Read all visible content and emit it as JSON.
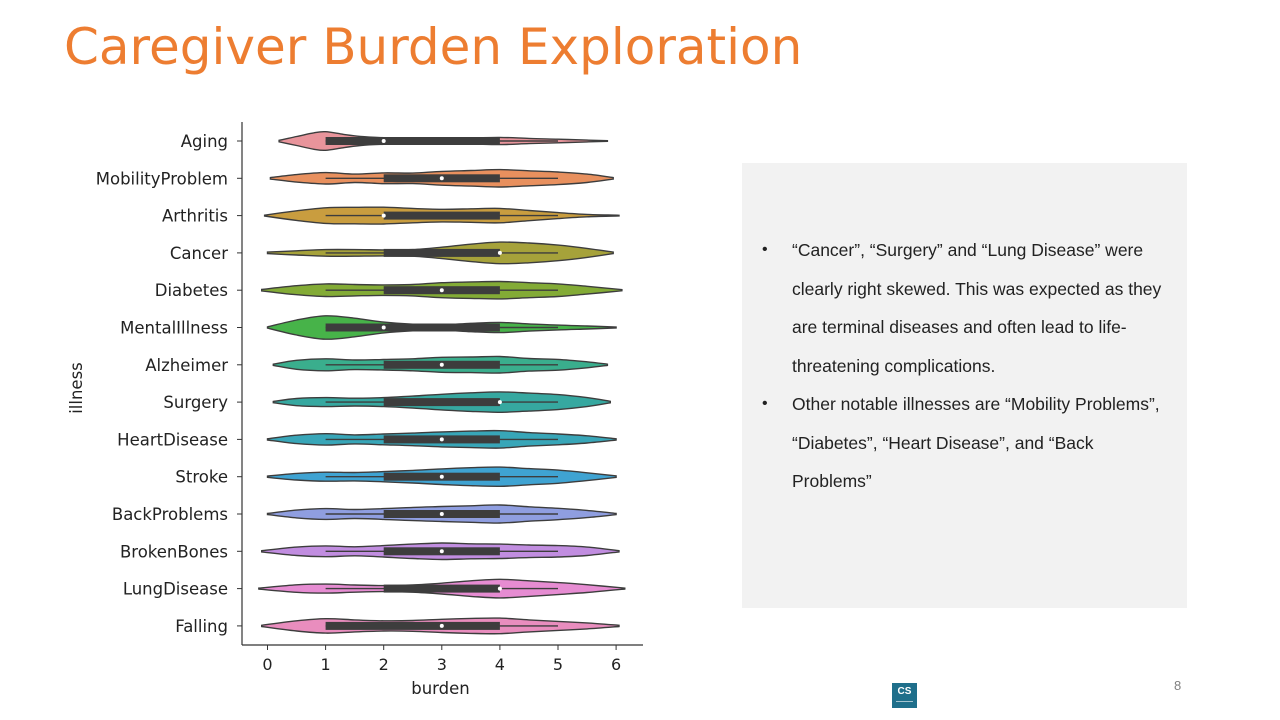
{
  "slide": {
    "title": "Caregiver Burden Exploration",
    "page_number": "8",
    "logo_text": "CS"
  },
  "notes": [
    "“Cancer”, “Surgery” and “Lung Disease” were clearly right skewed. This was expected as they are terminal diseases and often lead to life-threatening complications.",
    "Other notable illnesses are “Mobility Problems”, “Diabetes”, “Heart Disease”, and “Back Problems”"
  ],
  "chart_data": {
    "type": "violin",
    "orientation": "horizontal",
    "xlabel": "burden",
    "ylabel": "illness",
    "xlim": [
      -0.45,
      6.45
    ],
    "xticks": [
      0,
      1,
      2,
      3,
      4,
      5,
      6
    ],
    "grid": false,
    "categories": [
      {
        "name": "Aging",
        "color": "#E8949B",
        "range": [
          0.2,
          5.85
        ],
        "q1": 1,
        "median": 2,
        "q3": 4,
        "whisker": [
          1,
          5
        ],
        "density": [
          [
            0.2,
            0.05
          ],
          [
            0.5,
            0.3
          ],
          [
            0.8,
            0.55
          ],
          [
            1.0,
            0.62
          ],
          [
            1.3,
            0.45
          ],
          [
            1.6,
            0.3
          ],
          [
            2.0,
            0.22
          ],
          [
            2.5,
            0.2
          ],
          [
            3.0,
            0.2
          ],
          [
            3.5,
            0.2
          ],
          [
            4.0,
            0.24
          ],
          [
            4.5,
            0.17
          ],
          [
            5.0,
            0.12
          ],
          [
            5.5,
            0.06
          ],
          [
            5.85,
            0.02
          ]
        ]
      },
      {
        "name": "MobilityProblem",
        "color": "#E8905E",
        "range": [
          0.05,
          5.95
        ],
        "q1": 2,
        "median": 3,
        "q3": 4,
        "whisker": [
          1,
          5
        ],
        "density": [
          [
            0.05,
            0.05
          ],
          [
            0.5,
            0.25
          ],
          [
            1.0,
            0.38
          ],
          [
            1.5,
            0.28
          ],
          [
            2.0,
            0.36
          ],
          [
            2.5,
            0.35
          ],
          [
            3.0,
            0.46
          ],
          [
            3.5,
            0.52
          ],
          [
            4.0,
            0.58
          ],
          [
            4.5,
            0.5
          ],
          [
            5.0,
            0.42
          ],
          [
            5.5,
            0.28
          ],
          [
            5.95,
            0.05
          ]
        ]
      },
      {
        "name": "Arthritis",
        "color": "#C99D3F",
        "range": [
          -0.05,
          6.05
        ],
        "q1": 2,
        "median": 2,
        "q3": 4,
        "whisker": [
          1,
          5
        ],
        "density": [
          [
            -0.05,
            0.03
          ],
          [
            0.5,
            0.32
          ],
          [
            1.0,
            0.52
          ],
          [
            1.5,
            0.55
          ],
          [
            2.0,
            0.56
          ],
          [
            2.5,
            0.48
          ],
          [
            3.0,
            0.42
          ],
          [
            3.5,
            0.45
          ],
          [
            4.0,
            0.48
          ],
          [
            4.5,
            0.34
          ],
          [
            5.0,
            0.2
          ],
          [
            5.5,
            0.08
          ],
          [
            6.05,
            0.02
          ]
        ]
      },
      {
        "name": "Cancer",
        "color": "#A6A23A",
        "range": [
          0.0,
          5.95
        ],
        "q1": 2,
        "median": 4,
        "q3": 4,
        "whisker": [
          1,
          5
        ],
        "density": [
          [
            0.0,
            0.05
          ],
          [
            0.5,
            0.14
          ],
          [
            1.0,
            0.22
          ],
          [
            1.5,
            0.22
          ],
          [
            2.0,
            0.2
          ],
          [
            2.5,
            0.22
          ],
          [
            3.0,
            0.38
          ],
          [
            3.5,
            0.58
          ],
          [
            4.0,
            0.72
          ],
          [
            4.5,
            0.66
          ],
          [
            5.0,
            0.52
          ],
          [
            5.5,
            0.3
          ],
          [
            5.95,
            0.05
          ]
        ]
      },
      {
        "name": "Diabetes",
        "color": "#83AB36",
        "range": [
          -0.1,
          6.1
        ],
        "q1": 2,
        "median": 3,
        "q3": 4,
        "whisker": [
          1,
          5
        ],
        "density": [
          [
            -0.1,
            0.05
          ],
          [
            0.5,
            0.3
          ],
          [
            1.0,
            0.42
          ],
          [
            1.5,
            0.38
          ],
          [
            2.0,
            0.35
          ],
          [
            2.5,
            0.38
          ],
          [
            3.0,
            0.5
          ],
          [
            3.5,
            0.55
          ],
          [
            4.0,
            0.58
          ],
          [
            4.5,
            0.5
          ],
          [
            5.0,
            0.42
          ],
          [
            5.5,
            0.26
          ],
          [
            6.1,
            0.04
          ]
        ]
      },
      {
        "name": "MentalIllness",
        "color": "#47B349",
        "range": [
          0.0,
          6.0
        ],
        "q1": 1,
        "median": 2,
        "q3": 4,
        "whisker": [
          1,
          5
        ],
        "density": [
          [
            0.0,
            0.04
          ],
          [
            0.5,
            0.5
          ],
          [
            1.0,
            0.78
          ],
          [
            1.5,
            0.62
          ],
          [
            2.0,
            0.36
          ],
          [
            2.5,
            0.22
          ],
          [
            3.0,
            0.18
          ],
          [
            3.5,
            0.28
          ],
          [
            4.0,
            0.34
          ],
          [
            4.5,
            0.24
          ],
          [
            5.0,
            0.16
          ],
          [
            5.5,
            0.1
          ],
          [
            6.0,
            0.03
          ]
        ]
      },
      {
        "name": "Alzheimer",
        "color": "#3AAE8D",
        "range": [
          0.1,
          5.85
        ],
        "q1": 2,
        "median": 3,
        "q3": 4,
        "whisker": [
          1,
          5
        ],
        "density": [
          [
            0.1,
            0.04
          ],
          [
            0.5,
            0.3
          ],
          [
            1.0,
            0.4
          ],
          [
            1.5,
            0.32
          ],
          [
            2.0,
            0.35
          ],
          [
            2.5,
            0.4
          ],
          [
            3.0,
            0.5
          ],
          [
            3.5,
            0.52
          ],
          [
            4.0,
            0.55
          ],
          [
            4.5,
            0.42
          ],
          [
            5.0,
            0.36
          ],
          [
            5.5,
            0.2
          ],
          [
            5.85,
            0.04
          ]
        ]
      },
      {
        "name": "Surgery",
        "color": "#36A8A0",
        "range": [
          0.1,
          5.9
        ],
        "q1": 2,
        "median": 4,
        "q3": 4,
        "whisker": [
          1,
          5
        ],
        "density": [
          [
            0.1,
            0.04
          ],
          [
            0.5,
            0.24
          ],
          [
            1.0,
            0.3
          ],
          [
            1.5,
            0.26
          ],
          [
            2.0,
            0.3
          ],
          [
            2.5,
            0.4
          ],
          [
            3.0,
            0.52
          ],
          [
            3.5,
            0.62
          ],
          [
            4.0,
            0.68
          ],
          [
            4.5,
            0.6
          ],
          [
            5.0,
            0.5
          ],
          [
            5.5,
            0.3
          ],
          [
            5.9,
            0.05
          ]
        ]
      },
      {
        "name": "HeartDisease",
        "color": "#38A6B8",
        "range": [
          0.0,
          6.0
        ],
        "q1": 2,
        "median": 3,
        "q3": 4,
        "whisker": [
          1,
          5
        ],
        "density": [
          [
            0.0,
            0.04
          ],
          [
            0.5,
            0.28
          ],
          [
            1.0,
            0.38
          ],
          [
            1.5,
            0.3
          ],
          [
            2.0,
            0.36
          ],
          [
            2.5,
            0.42
          ],
          [
            3.0,
            0.5
          ],
          [
            3.5,
            0.55
          ],
          [
            4.0,
            0.58
          ],
          [
            4.5,
            0.45
          ],
          [
            5.0,
            0.36
          ],
          [
            5.5,
            0.24
          ],
          [
            6.0,
            0.04
          ]
        ]
      },
      {
        "name": "Stroke",
        "color": "#3FA3D2",
        "range": [
          0.0,
          6.0
        ],
        "q1": 2,
        "median": 3,
        "q3": 4,
        "whisker": [
          1,
          5
        ],
        "density": [
          [
            0.0,
            0.04
          ],
          [
            0.5,
            0.22
          ],
          [
            1.0,
            0.3
          ],
          [
            1.5,
            0.28
          ],
          [
            2.0,
            0.34
          ],
          [
            2.5,
            0.42
          ],
          [
            3.0,
            0.52
          ],
          [
            3.5,
            0.6
          ],
          [
            4.0,
            0.64
          ],
          [
            4.5,
            0.54
          ],
          [
            5.0,
            0.44
          ],
          [
            5.5,
            0.26
          ],
          [
            6.0,
            0.05
          ]
        ]
      },
      {
        "name": "BackProblems",
        "color": "#8F9EE0",
        "range": [
          0.0,
          6.0
        ],
        "q1": 2,
        "median": 3,
        "q3": 4,
        "whisker": [
          1,
          5
        ],
        "density": [
          [
            0.0,
            0.04
          ],
          [
            0.5,
            0.26
          ],
          [
            1.0,
            0.36
          ],
          [
            1.5,
            0.3
          ],
          [
            2.0,
            0.36
          ],
          [
            2.5,
            0.44
          ],
          [
            3.0,
            0.5
          ],
          [
            3.5,
            0.55
          ],
          [
            4.0,
            0.6
          ],
          [
            4.5,
            0.48
          ],
          [
            5.0,
            0.38
          ],
          [
            5.5,
            0.24
          ],
          [
            6.0,
            0.04
          ]
        ]
      },
      {
        "name": "BrokenBones",
        "color": "#C18DE0",
        "range": [
          -0.1,
          6.05
        ],
        "q1": 2,
        "median": 3,
        "q3": 4,
        "whisker": [
          1,
          5
        ],
        "density": [
          [
            -0.1,
            0.04
          ],
          [
            0.5,
            0.28
          ],
          [
            1.0,
            0.36
          ],
          [
            1.5,
            0.3
          ],
          [
            2.0,
            0.38
          ],
          [
            2.5,
            0.48
          ],
          [
            3.0,
            0.55
          ],
          [
            3.5,
            0.5
          ],
          [
            4.0,
            0.48
          ],
          [
            4.5,
            0.42
          ],
          [
            5.0,
            0.38
          ],
          [
            5.5,
            0.28
          ],
          [
            6.05,
            0.04
          ]
        ]
      },
      {
        "name": "LungDisease",
        "color": "#E68CD2",
        "range": [
          -0.15,
          6.15
        ],
        "q1": 2,
        "median": 4,
        "q3": 4,
        "whisker": [
          1,
          5
        ],
        "density": [
          [
            -0.15,
            0.03
          ],
          [
            0.5,
            0.25
          ],
          [
            1.0,
            0.3
          ],
          [
            1.5,
            0.24
          ],
          [
            2.0,
            0.2
          ],
          [
            2.5,
            0.24
          ],
          [
            3.0,
            0.36
          ],
          [
            3.5,
            0.52
          ],
          [
            4.0,
            0.62
          ],
          [
            4.5,
            0.52
          ],
          [
            5.0,
            0.4
          ],
          [
            5.5,
            0.26
          ],
          [
            6.15,
            0.03
          ]
        ]
      },
      {
        "name": "Falling",
        "color": "#E98DBE",
        "range": [
          -0.1,
          6.05
        ],
        "q1": 1,
        "median": 3,
        "q3": 4,
        "whisker": [
          1,
          5
        ],
        "density": [
          [
            -0.1,
            0.04
          ],
          [
            0.5,
            0.34
          ],
          [
            1.0,
            0.48
          ],
          [
            1.5,
            0.4
          ],
          [
            2.0,
            0.34
          ],
          [
            2.5,
            0.36
          ],
          [
            3.0,
            0.44
          ],
          [
            3.5,
            0.5
          ],
          [
            4.0,
            0.52
          ],
          [
            4.5,
            0.4
          ],
          [
            5.0,
            0.3
          ],
          [
            5.5,
            0.2
          ],
          [
            6.05,
            0.04
          ]
        ]
      }
    ]
  }
}
